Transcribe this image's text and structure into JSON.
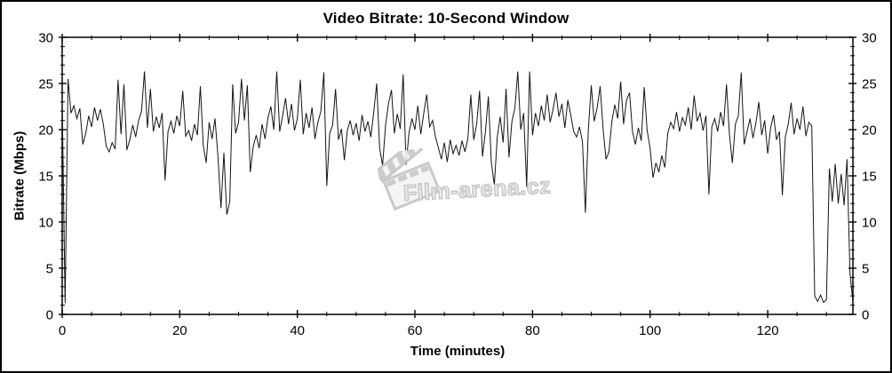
{
  "figure": {
    "watermark": "Film-arena.cz"
  },
  "chart_data": {
    "type": "line",
    "title": "Video Bitrate: 10-Second Window",
    "xlabel": "Time (minutes)",
    "ylabel": "Bitrate (Mbps)",
    "xlim": [
      0,
      134.5
    ],
    "ylim": [
      0,
      30
    ],
    "x_major_ticks": [
      0,
      20,
      40,
      60,
      80,
      100,
      120
    ],
    "x_minor_step": 5,
    "y_major_ticks": [
      0,
      5,
      10,
      15,
      20,
      25,
      30
    ],
    "y_minor_step": 1,
    "grid": false,
    "legend": "none",
    "line_color": "#141414",
    "series": [
      {
        "name": "bitrate-10s-window",
        "unit": "Mbps",
        "t_start": 0,
        "t_step": 0.5,
        "values": [
          23.0,
          1.2,
          25.5,
          21.8,
          22.6,
          21.2,
          22.3,
          18.4,
          19.6,
          21.5,
          20.3,
          22.4,
          21.0,
          22.2,
          20.6,
          18.2,
          17.6,
          18.6,
          17.9,
          25.4,
          19.5,
          24.9,
          17.8,
          18.9,
          20.5,
          19.2,
          21.0,
          22.0,
          26.3,
          20.2,
          24.4,
          19.8,
          21.4,
          20.2,
          21.8,
          14.5,
          19.8,
          20.9,
          19.6,
          21.5,
          20.4,
          24.2,
          19.3,
          19.9,
          18.8,
          20.6,
          19.4,
          24.7,
          18.3,
          16.4,
          20.8,
          19.0,
          21.2,
          17.0,
          11.5,
          17.5,
          10.8,
          12.2,
          24.9,
          19.6,
          20.8,
          25.5,
          21.0,
          24.8,
          15.4,
          18.2,
          19.4,
          18.0,
          20.6,
          19.0,
          21.3,
          22.5,
          20.0,
          26.3,
          19.8,
          21.5,
          23.4,
          20.6,
          22.8,
          19.9,
          21.2,
          25.4,
          19.5,
          21.8,
          20.2,
          22.4,
          19.0,
          20.8,
          22.0,
          26.2,
          13.9,
          19.6,
          20.5,
          24.4,
          18.9,
          20.1,
          16.7,
          19.9,
          21.0,
          19.4,
          20.7,
          18.8,
          21.6,
          19.8,
          20.9,
          19.2,
          21.9,
          25.0,
          18.0,
          16.1,
          20.4,
          22.8,
          24.3,
          19.6,
          21.7,
          20.1,
          26.0,
          16.2,
          19.7,
          21.2,
          20.0,
          22.6,
          19.5,
          21.8,
          23.8,
          20.3,
          21.0,
          19.2,
          18.0,
          16.8,
          18.6,
          16.5,
          18.9,
          17.4,
          18.3,
          17.2,
          18.8,
          17.6,
          19.0,
          23.8,
          18.9,
          20.6,
          24.2,
          17.1,
          19.8,
          23.6,
          16.5,
          14.0,
          19.2,
          21.4,
          18.6,
          24.4,
          17.0,
          20.9,
          22.3,
          26.3,
          20.0,
          21.8,
          13.8,
          26.3,
          19.4,
          21.8,
          20.4,
          22.6,
          21.0,
          23.8,
          20.8,
          22.2,
          24.0,
          21.4,
          22.8,
          20.2,
          23.2,
          21.6,
          19.8,
          19.2,
          20.3,
          18.7,
          11.0,
          20.0,
          24.8,
          20.9,
          22.4,
          24.7,
          20.1,
          16.8,
          17.6,
          20.9,
          22.7,
          21.2,
          25.2,
          20.6,
          23.2,
          24.0,
          19.8,
          18.4,
          20.2,
          18.8,
          24.6,
          19.9,
          18.0,
          14.8,
          16.4,
          15.4,
          17.2,
          15.9,
          19.6,
          20.8,
          20.1,
          21.9,
          19.8,
          21.3,
          20.5,
          22.4,
          20.0,
          23.7,
          20.9,
          21.8,
          19.9,
          21.5,
          13.0,
          20.3,
          21.2,
          19.8,
          21.9,
          20.4,
          24.9,
          19.5,
          16.4,
          20.6,
          21.5,
          26.2,
          18.4,
          19.8,
          21.2,
          19.1,
          20.7,
          23.0,
          19.4,
          21.0,
          17.4,
          20.2,
          21.6,
          18.9,
          19.8,
          12.9,
          19.2,
          20.6,
          22.9,
          19.5,
          21.2,
          20.0,
          22.5,
          19.3,
          20.8,
          20.4,
          2.0,
          1.4,
          2.1,
          1.3,
          1.6,
          15.8,
          12.2,
          16.3,
          12.0,
          15.2,
          11.8,
          16.8,
          4.5,
          1.3
        ]
      }
    ]
  }
}
